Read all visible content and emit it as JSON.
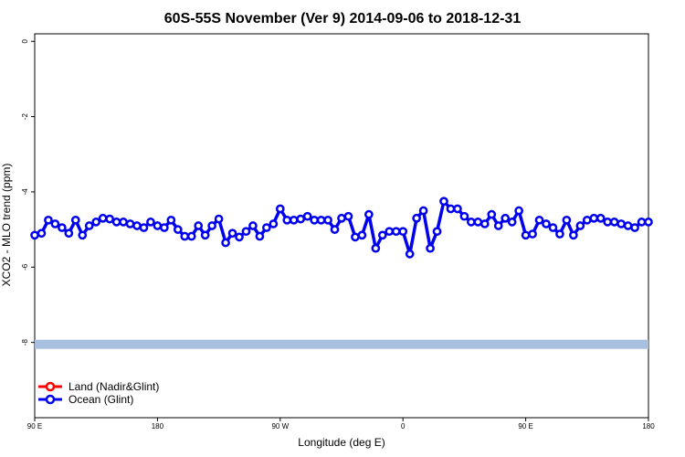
{
  "chart_data": {
    "type": "line",
    "title": "60S-55S November (Ver 9)   2014-09-06 to 2018-12-31",
    "xlabel": "Longitude (deg E)",
    "ylabel": "XCO2 - MLO trend (ppm)",
    "x_ticks": [
      {
        "value": 90,
        "label": "90 E"
      },
      {
        "value": 180,
        "label": "180"
      },
      {
        "value": 270,
        "label": "90 W"
      },
      {
        "value": 360,
        "label": "0"
      },
      {
        "value": 450,
        "label": "90 E"
      },
      {
        "value": 540,
        "label": "180"
      }
    ],
    "y_ticks": [
      {
        "value": 0,
        "label": "0"
      },
      {
        "value": -2,
        "label": "-2"
      },
      {
        "value": -4,
        "label": "-4"
      },
      {
        "value": -6,
        "label": "-6"
      },
      {
        "value": -8,
        "label": "-8"
      }
    ],
    "xlim": [
      90,
      540
    ],
    "ylim": [
      -10,
      0.2
    ],
    "grid": false,
    "legend_position": "bottom-left",
    "band": {
      "y": -8.05,
      "color": "#a8bfe0"
    },
    "series": [
      {
        "name": "Land (Nadir&Glint)",
        "color": "#ff0000",
        "x": [],
        "y": []
      },
      {
        "name": "Ocean (Glint)",
        "color": "#0000ee",
        "x": [
          90,
          95,
          100,
          105,
          110,
          115,
          120,
          125,
          130,
          135,
          140,
          145,
          150,
          155,
          160,
          165,
          170,
          175,
          180,
          185,
          190,
          195,
          200,
          205,
          210,
          215,
          220,
          225,
          230,
          235,
          240,
          245,
          250,
          255,
          260,
          265,
          270,
          275,
          280,
          285,
          290,
          295,
          300,
          305,
          310,
          315,
          320,
          325,
          330,
          335,
          340,
          345,
          350,
          355,
          360,
          365,
          370,
          375,
          380,
          385,
          390,
          395,
          400,
          405,
          410,
          415,
          420,
          425,
          430,
          435,
          440,
          445,
          450,
          455,
          460,
          465,
          470,
          475,
          480,
          485,
          490,
          495,
          500,
          505,
          510,
          515,
          520,
          525,
          530,
          535,
          540
        ],
        "y": [
          -5.15,
          -5.1,
          -4.75,
          -4.85,
          -4.95,
          -5.1,
          -4.75,
          -5.15,
          -4.9,
          -4.8,
          -4.7,
          -4.72,
          -4.8,
          -4.8,
          -4.85,
          -4.9,
          -4.95,
          -4.8,
          -4.9,
          -4.95,
          -4.75,
          -5.0,
          -5.18,
          -5.18,
          -4.9,
          -5.15,
          -4.9,
          -4.72,
          -5.35,
          -5.1,
          -5.2,
          -5.05,
          -4.9,
          -5.18,
          -4.95,
          -4.85,
          -4.45,
          -4.75,
          -4.75,
          -4.72,
          -4.65,
          -4.75,
          -4.75,
          -4.75,
          -5.0,
          -4.7,
          -4.65,
          -5.2,
          -5.15,
          -4.6,
          -5.5,
          -5.15,
          -5.05,
          -5.05,
          -5.05,
          -5.65,
          -4.7,
          -4.5,
          -5.5,
          -5.05,
          -4.25,
          -4.45,
          -4.45,
          -4.65,
          -4.8,
          -4.8,
          -4.85,
          -4.6,
          -4.9,
          -4.7,
          -4.8,
          -4.5,
          -5.15,
          -5.12,
          -4.75,
          -4.85,
          -4.95,
          -5.12,
          -4.75,
          -5.15,
          -4.9,
          -4.75,
          -4.7,
          -4.7,
          -4.8,
          -4.8,
          -4.85,
          -4.9,
          -4.95,
          -4.8,
          -4.8
        ]
      }
    ]
  }
}
